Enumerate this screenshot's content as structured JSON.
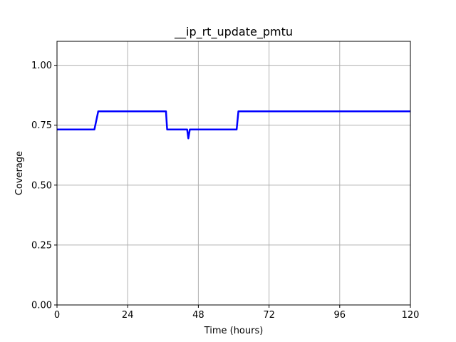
{
  "chart_data": {
    "type": "line",
    "title": "__ip_rt_update_pmtu",
    "xlabel": "Time (hours)",
    "ylabel": "Coverage",
    "xlim": [
      0,
      120
    ],
    "ylim": [
      0,
      1.1
    ],
    "x_ticks": [
      0,
      24,
      48,
      72,
      96,
      120
    ],
    "x_tick_labels": [
      "0",
      "24",
      "48",
      "72",
      "96",
      "120"
    ],
    "y_ticks": [
      0,
      0.25,
      0.5,
      0.75,
      1.0
    ],
    "y_tick_labels": [
      "0.00",
      "0.25",
      "0.50",
      "0.75",
      "1.00"
    ],
    "grid": true,
    "series": [
      {
        "color": "#0000ff",
        "x": [
          0,
          12.7,
          14,
          37,
          37.4,
          44.2,
          44.6,
          45.1,
          61,
          61.6,
          120
        ],
        "y": [
          0.732,
          0.732,
          0.808,
          0.808,
          0.732,
          0.732,
          0.695,
          0.732,
          0.732,
          0.808,
          0.808
        ]
      }
    ]
  }
}
